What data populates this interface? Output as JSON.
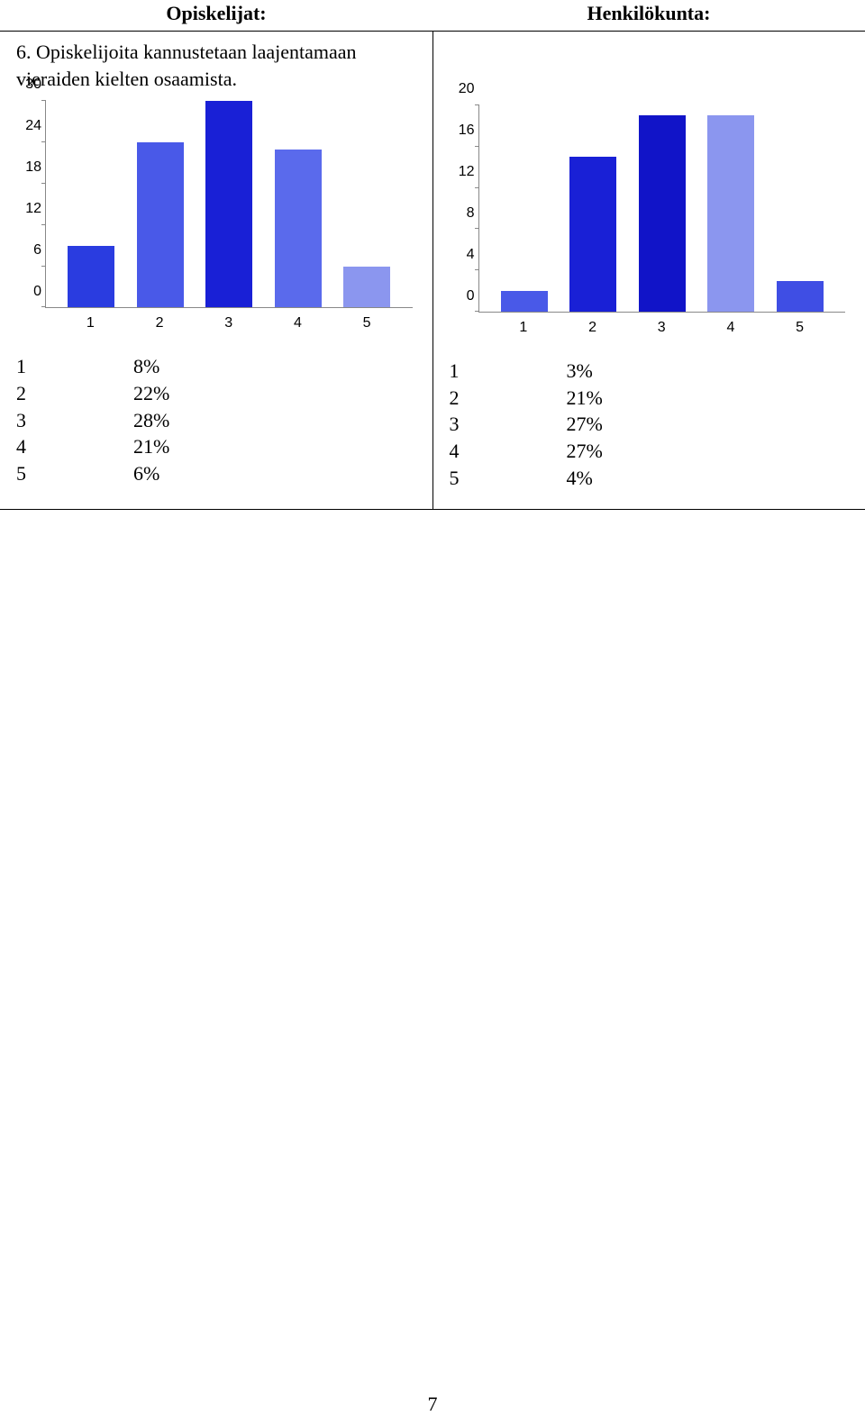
{
  "header": {
    "left": "Opiskelijat:",
    "right": "Henkilökunta:"
  },
  "question": "6. Opiskelijoita kannustetaan laajentamaan vieraiden kielten osaamista.",
  "left_chart": {
    "type": "bar",
    "categories": [
      "1",
      "2",
      "3",
      "4",
      "5"
    ],
    "values": [
      9,
      24,
      30,
      23,
      6
    ],
    "ymax": 30,
    "y_ticks": [
      0,
      6,
      12,
      18,
      24,
      30
    ],
    "bar_colors": [
      "#2a3ce0",
      "#4959e8",
      "#1920d6",
      "#5a6aec",
      "#8b96ef"
    ],
    "axis_label_color": "#000000",
    "axis_line_color": "#888888",
    "background_color": "#ffffff",
    "axis_fontsize": 16
  },
  "right_chart": {
    "type": "bar",
    "categories": [
      "1",
      "2",
      "3",
      "4",
      "5"
    ],
    "values": [
      2,
      15,
      19,
      19,
      3
    ],
    "ymax": 20,
    "y_ticks": [
      0,
      4,
      8,
      12,
      16,
      20
    ],
    "bar_colors": [
      "#4959e8",
      "#1920d6",
      "#1114c8",
      "#8b96ef",
      "#3f4ee4"
    ],
    "axis_label_color": "#000000",
    "axis_line_color": "#888888",
    "background_color": "#ffffff",
    "axis_fontsize": 16
  },
  "left_stats": {
    "rows": [
      {
        "k": "1",
        "v": "8%"
      },
      {
        "k": "2",
        "v": "22%"
      },
      {
        "k": "3",
        "v": "28%"
      },
      {
        "k": "4",
        "v": "21%"
      },
      {
        "k": "5",
        "v": "6%"
      }
    ]
  },
  "right_stats": {
    "rows": [
      {
        "k": "1",
        "v": "3%"
      },
      {
        "k": "2",
        "v": "21%"
      },
      {
        "k": "3",
        "v": "27%"
      },
      {
        "k": "4",
        "v": "27%"
      },
      {
        "k": "5",
        "v": "4%"
      }
    ]
  },
  "page_number": "7"
}
